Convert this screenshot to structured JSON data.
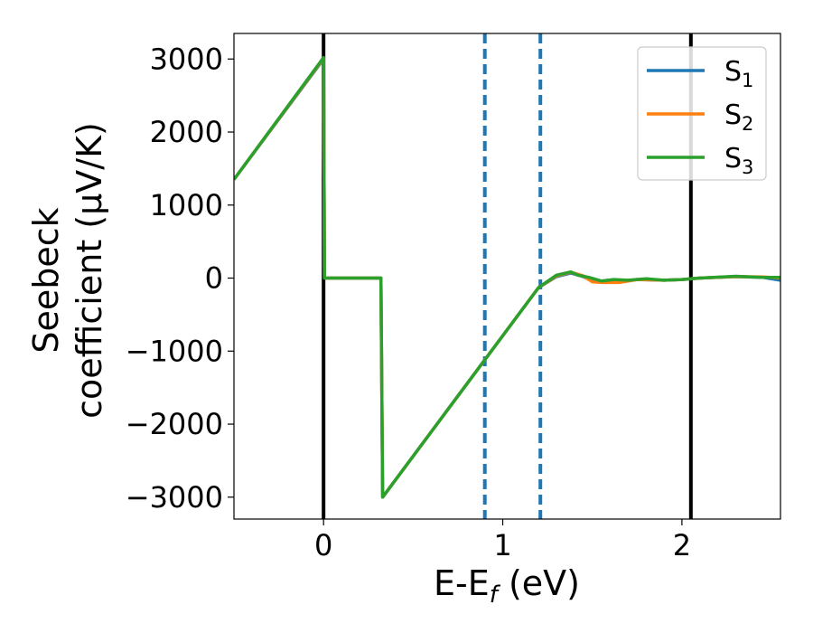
{
  "chart_data": {
    "type": "line",
    "title": "",
    "xlabel": "E-E",
    "xlabel_sub": "f",
    "xlabel_unit": " (eV)",
    "ylabel_line1": "Seebeck",
    "ylabel_line2": "coefficient  (μV/K)",
    "xlim": [
      -0.5,
      2.55
    ],
    "ylim": [
      -3300,
      3350
    ],
    "xticks": [
      0,
      1,
      2
    ],
    "yticks": [
      -3000,
      -2000,
      -1000,
      0,
      1000,
      2000,
      3000
    ],
    "ytick_labels": [
      "−3000",
      "−2000",
      "−1000",
      "0",
      "1000",
      "2000",
      "3000"
    ],
    "legend_position": "top-right",
    "grid": false,
    "vertical_lines": [
      {
        "x": 0.0,
        "style": "solid",
        "color": "#000000"
      },
      {
        "x": 0.9,
        "style": "dashed",
        "color": "#1f77b4"
      },
      {
        "x": 1.21,
        "style": "dashed",
        "color": "#1f77b4"
      },
      {
        "x": 2.05,
        "style": "solid",
        "color": "#000000"
      }
    ],
    "series": [
      {
        "name": "S",
        "sub": "1",
        "color": "#1f77b4",
        "x": [
          -0.5,
          0.0,
          0.005,
          0.32,
          0.33,
          1.2,
          1.3,
          1.38,
          1.45,
          1.5,
          1.55,
          1.65,
          1.75,
          1.9,
          2.0,
          2.1,
          2.3,
          2.45,
          2.55
        ],
        "y": [
          1350,
          3000,
          0,
          0,
          -3000,
          -130,
          20,
          70,
          20,
          -40,
          -40,
          -50,
          -20,
          -30,
          -20,
          0,
          20,
          10,
          -30
        ]
      },
      {
        "name": "S",
        "sub": "2",
        "color": "#ff7f0e",
        "x": [
          -0.5,
          0.0,
          0.005,
          0.32,
          0.33,
          1.2,
          1.3,
          1.38,
          1.45,
          1.5,
          1.55,
          1.65,
          1.75,
          1.9,
          2.0,
          2.1,
          2.3,
          2.45,
          2.55
        ],
        "y": [
          1350,
          3010,
          0,
          0,
          -3000,
          -130,
          30,
          80,
          30,
          -50,
          -60,
          -60,
          -20,
          -30,
          -20,
          0,
          20,
          15,
          0
        ]
      },
      {
        "name": "S",
        "sub": "3",
        "color": "#2ca02c",
        "x": [
          -0.5,
          0.0,
          0.005,
          0.32,
          0.33,
          1.2,
          1.3,
          1.38,
          1.42,
          1.48,
          1.55,
          1.62,
          1.7,
          1.8,
          1.9,
          2.0,
          2.1,
          2.3,
          2.45,
          2.55
        ],
        "y": [
          1350,
          3020,
          0,
          0,
          -3000,
          -130,
          40,
          85,
          40,
          10,
          -40,
          -20,
          -30,
          -10,
          -30,
          -20,
          0,
          25,
          10,
          10
        ]
      }
    ]
  }
}
